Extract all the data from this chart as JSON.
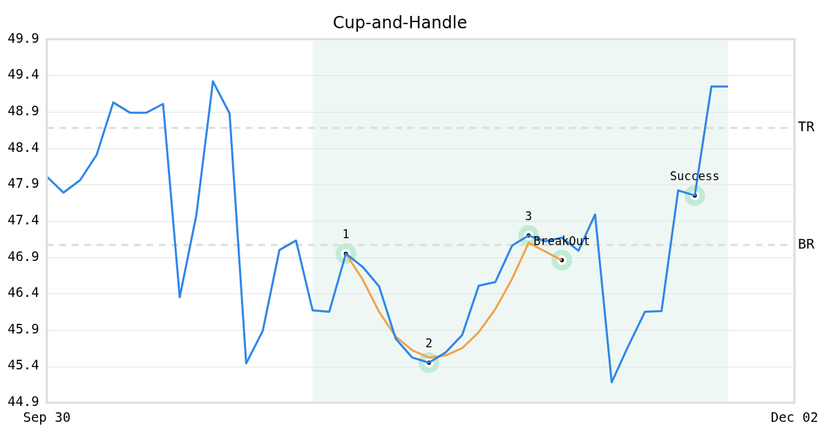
{
  "chart_data": {
    "type": "line",
    "title": "Cup-and-Handle",
    "categories": [
      "Sep 30",
      null,
      null,
      null,
      null,
      null,
      null,
      null,
      null,
      null,
      null,
      null,
      null,
      null,
      null,
      null,
      null,
      null,
      null,
      null,
      null,
      null,
      null,
      null,
      null,
      null,
      null,
      null,
      null,
      null,
      null,
      null,
      null,
      null,
      null,
      null,
      null,
      null,
      null,
      null,
      null,
      null,
      null,
      null,
      null,
      "Dec 02"
    ],
    "ylim": [
      44.9,
      49.9
    ],
    "yticks": [
      44.9,
      45.4,
      45.9,
      46.4,
      46.9,
      47.4,
      47.9,
      48.4,
      48.9,
      49.4,
      49.9
    ],
    "grid": "y",
    "legend": false,
    "marker": "none",
    "line_style": "solid",
    "series": [
      {
        "color": "#2e86e8",
        "values": [
          48.01,
          47.79,
          47.96,
          48.31,
          49.03,
          48.89,
          48.89,
          49.01,
          46.35,
          47.48,
          49.32,
          48.88,
          45.44,
          45.89,
          47.0,
          47.13,
          46.17,
          46.15,
          46.95,
          46.77,
          46.5,
          45.78,
          45.52,
          45.45,
          45.59,
          45.83,
          46.51,
          46.56,
          47.06,
          47.2,
          47.12,
          47.17,
          46.99,
          47.49,
          45.18,
          45.68,
          46.15,
          46.16,
          47.82,
          47.75,
          49.25,
          49.25,
          null,
          null,
          null,
          null
        ]
      },
      {
        "color": "#f5a04a",
        "values": [
          null,
          null,
          null,
          null,
          null,
          null,
          null,
          null,
          null,
          null,
          null,
          null,
          null,
          null,
          null,
          null,
          null,
          null,
          46.95,
          46.6,
          46.15,
          45.81,
          45.62,
          45.52,
          45.55,
          45.65,
          45.87,
          46.19,
          46.6,
          47.1,
          46.98,
          46.86,
          null,
          null,
          null,
          null,
          null,
          null,
          null,
          null,
          null,
          null,
          null,
          null,
          null,
          null
        ]
      },
      {
        "type": "scatter",
        "color": "#c2ead6",
        "marker": "circle",
        "values": [
          null,
          null,
          null,
          null,
          null,
          null,
          null,
          null,
          null,
          null,
          null,
          null,
          null,
          null,
          null,
          null,
          null,
          null,
          46.95,
          null,
          null,
          null,
          null,
          45.45,
          null,
          null,
          null,
          null,
          null,
          47.2,
          null,
          46.86,
          null,
          null,
          null,
          null,
          null,
          null,
          null,
          47.75,
          null,
          null,
          null,
          null,
          null,
          null
        ]
      }
    ],
    "annotations": [
      "1",
      "2",
      "3",
      "BreakOut",
      "Success"
    ],
    "ref_lines": [
      {
        "axis": "y",
        "value": 48.68,
        "label": "TR",
        "color": "#dddddd",
        "line_style": "dashed"
      },
      {
        "axis": "y",
        "value": 47.07,
        "label": "BR",
        "color": "#dddddd",
        "line_style": "dashed"
      }
    ]
  }
}
